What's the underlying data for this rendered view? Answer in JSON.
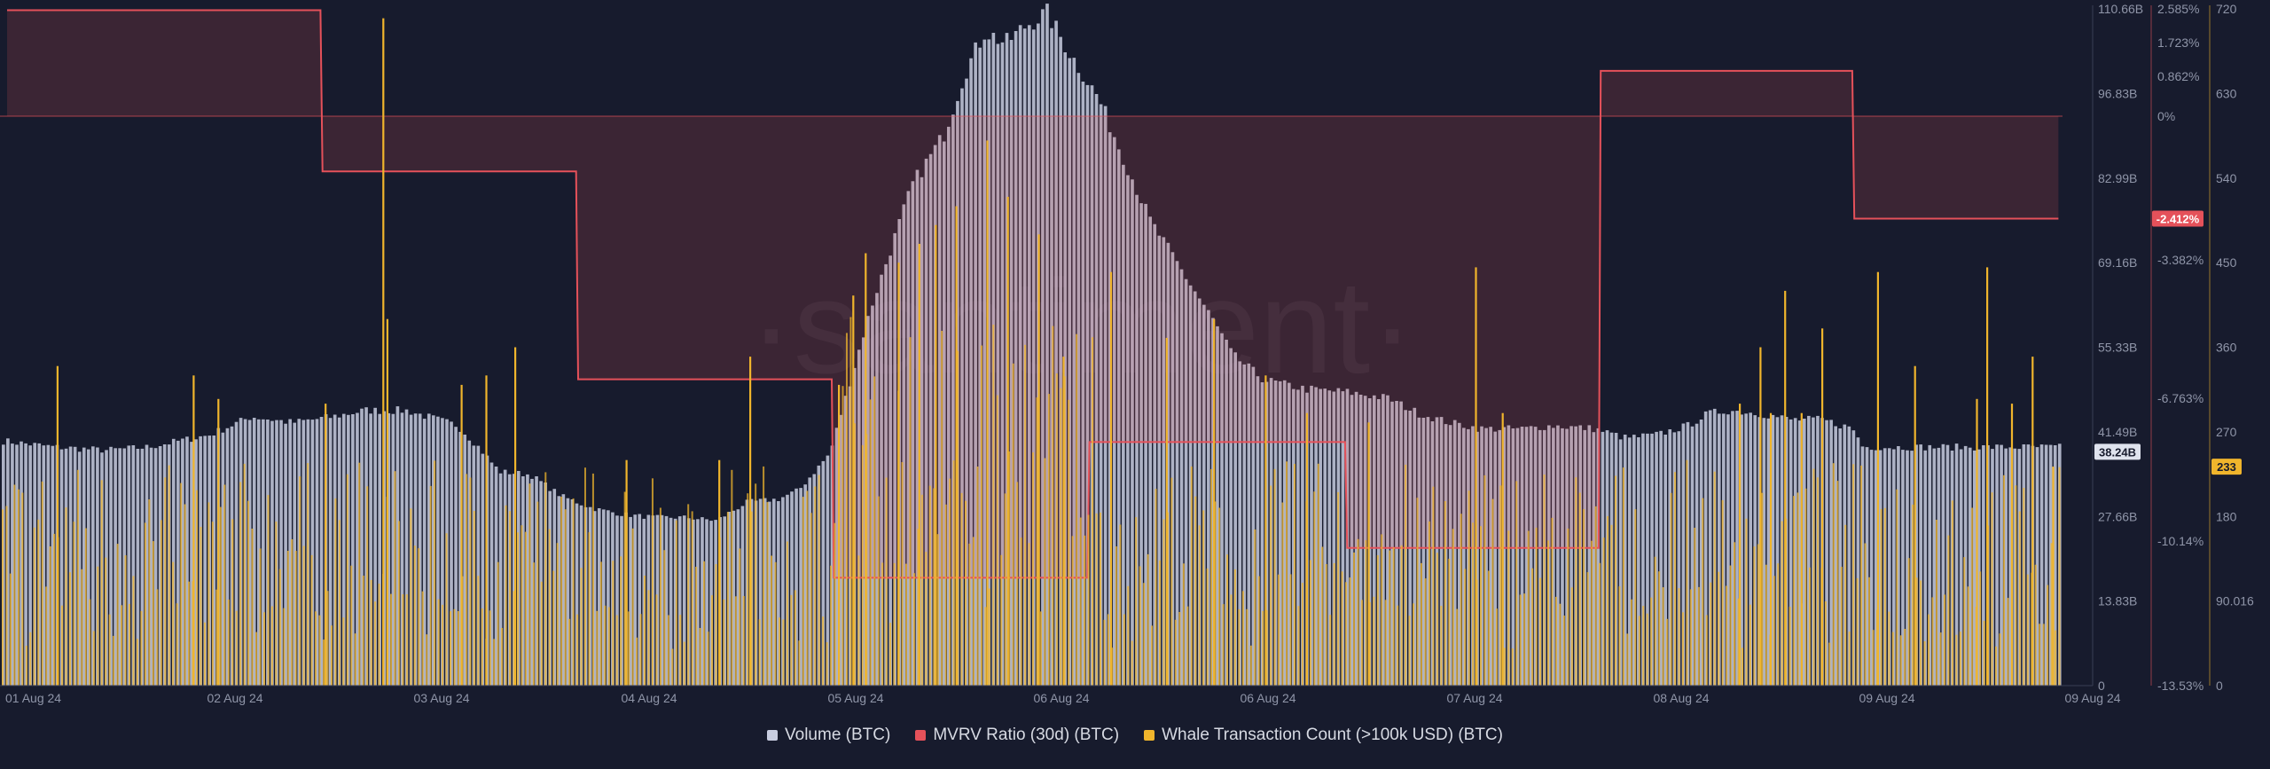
{
  "watermark": "·santiment·",
  "colors": {
    "background": "#171b2d",
    "volume": "#c8cde0",
    "mvrv": "#e5515a",
    "whale": "#f0b52c",
    "axis_text": "#8f95a8"
  },
  "chart_data": {
    "type": "bar",
    "x_range": [
      "2024-08-01",
      "2024-08-09"
    ],
    "x_ticks": [
      "01 Aug 24",
      "02 Aug 24",
      "03 Aug 24",
      "04 Aug 24",
      "05 Aug 24",
      "06 Aug 24",
      "06 Aug 24",
      "07 Aug 24",
      "08 Aug 24",
      "09 Aug 24",
      "09 Aug 24"
    ],
    "axes": {
      "volume": {
        "ticks": [
          "110.66B",
          "96.83B",
          "82.99B",
          "69.16B",
          "55.33B",
          "41.49B",
          "27.66B",
          "13.83B",
          "0"
        ],
        "range": [
          0,
          110.66
        ],
        "current_label": "38.24B"
      },
      "mvrv": {
        "ticks": [
          "2.585%",
          "1.723%",
          "0.862%",
          "0%",
          "-3.382%",
          "-6.763%",
          "-10.14%",
          "-13.53%"
        ],
        "current_label": "-2.412%"
      },
      "whale": {
        "ticks": [
          "720",
          "630",
          "540",
          "450",
          "360",
          "270",
          "180",
          "90.016",
          "0"
        ],
        "range": [
          0,
          720
        ],
        "current_label": "233"
      }
    },
    "series": [
      {
        "name": "Volume (BTC)",
        "type": "bar",
        "unit": "B",
        "anchors_day_value": [
          [
            0.0,
            40
          ],
          [
            0.25,
            39
          ],
          [
            0.5,
            38.5
          ],
          [
            0.7,
            39
          ],
          [
            1.0,
            41
          ],
          [
            1.2,
            44
          ],
          [
            1.4,
            43
          ],
          [
            1.6,
            44
          ],
          [
            1.75,
            45
          ],
          [
            1.95,
            45
          ],
          [
            2.05,
            44
          ],
          [
            2.2,
            42.5
          ],
          [
            2.3,
            39
          ],
          [
            2.4,
            35
          ],
          [
            2.55,
            34.5
          ],
          [
            2.7,
            31
          ],
          [
            2.85,
            29
          ],
          [
            3.0,
            28
          ],
          [
            3.15,
            27.5
          ],
          [
            3.3,
            27.5
          ],
          [
            3.45,
            27
          ],
          [
            3.6,
            30
          ],
          [
            3.75,
            30.5
          ],
          [
            3.85,
            32
          ],
          [
            4.0,
            38
          ],
          [
            4.1,
            50
          ],
          [
            4.2,
            62
          ],
          [
            4.3,
            72
          ],
          [
            4.4,
            82
          ],
          [
            4.55,
            90
          ],
          [
            4.65,
            100
          ],
          [
            4.75,
            107
          ],
          [
            4.85,
            105
          ],
          [
            4.95,
            108
          ],
          [
            5.05,
            110
          ],
          [
            5.15,
            104
          ],
          [
            5.3,
            96
          ],
          [
            5.45,
            84
          ],
          [
            5.55,
            76
          ],
          [
            5.7,
            68
          ],
          [
            5.85,
            60
          ],
          [
            5.95,
            54
          ],
          [
            6.1,
            50
          ],
          [
            6.3,
            48.5
          ],
          [
            6.5,
            48
          ],
          [
            6.7,
            47
          ],
          [
            6.85,
            44.5
          ],
          [
            7.0,
            43
          ],
          [
            7.15,
            42
          ],
          [
            7.35,
            42
          ],
          [
            7.5,
            42.5
          ],
          [
            7.7,
            42
          ],
          [
            7.85,
            40.5
          ],
          [
            8.0,
            41
          ],
          [
            8.15,
            42.5
          ],
          [
            8.25,
            44.5
          ],
          [
            8.35,
            45
          ],
          [
            8.5,
            44.5
          ],
          [
            8.65,
            43.5
          ],
          [
            8.8,
            43.5
          ],
          [
            8.95,
            42
          ],
          [
            9.0,
            39
          ]
        ]
      },
      {
        "name": "MVRV Ratio (30d) (BTC)",
        "type": "step",
        "unit": "%",
        "steps_day_value": [
          [
            0.0,
            2.55
          ],
          [
            1.52,
            2.55
          ],
          [
            1.53,
            -1.3
          ],
          [
            2.76,
            -1.3
          ],
          [
            2.77,
            -6.3
          ],
          [
            4.0,
            -6.3
          ],
          [
            4.01,
            -11.0
          ],
          [
            5.24,
            -11.0
          ],
          [
            5.25,
            -7.8
          ],
          [
            6.49,
            -7.8
          ],
          [
            6.5,
            -10.3
          ],
          [
            7.72,
            -10.3
          ],
          [
            7.73,
            1.0
          ],
          [
            8.95,
            1.0
          ],
          [
            8.96,
            -2.412
          ],
          [
            9.95,
            -2.412
          ]
        ]
      },
      {
        "name": "Whale Transaction Count (>100k USD) (BTC)",
        "type": "bar",
        "unit": "count",
        "spikes_day_value": [
          [
            0.24,
            340
          ],
          [
            0.9,
            330
          ],
          [
            1.02,
            305
          ],
          [
            1.54,
            300
          ],
          [
            1.82,
            710
          ],
          [
            1.84,
            390
          ],
          [
            2.2,
            320
          ],
          [
            2.32,
            330
          ],
          [
            2.46,
            360
          ],
          [
            3.0,
            240
          ],
          [
            3.45,
            240
          ],
          [
            3.6,
            350
          ],
          [
            4.03,
            320
          ],
          [
            4.1,
            415
          ],
          [
            4.16,
            460
          ],
          [
            4.32,
            450
          ],
          [
            4.42,
            470
          ],
          [
            4.5,
            490
          ],
          [
            4.6,
            510
          ],
          [
            4.75,
            580
          ],
          [
            4.85,
            520
          ],
          [
            5.0,
            480
          ],
          [
            5.12,
            350
          ],
          [
            5.35,
            440
          ],
          [
            5.62,
            370
          ],
          [
            5.85,
            390
          ],
          [
            6.1,
            330
          ],
          [
            6.3,
            290
          ],
          [
            6.6,
            280
          ],
          [
            7.12,
            445
          ],
          [
            7.25,
            290
          ],
          [
            8.4,
            300
          ],
          [
            8.5,
            360
          ],
          [
            8.55,
            290
          ],
          [
            8.62,
            420
          ],
          [
            8.7,
            290
          ],
          [
            8.8,
            380
          ],
          [
            9.07,
            440
          ],
          [
            9.25,
            340
          ],
          [
            9.6,
            445
          ],
          [
            9.55,
            305
          ],
          [
            9.72,
            300
          ],
          [
            9.82,
            350
          ],
          [
            9.92,
            233
          ]
        ],
        "base_range": [
          70,
          240
        ]
      }
    ],
    "legend_position": "bottom-center",
    "grid": false
  },
  "legend": [
    {
      "label": "Volume (BTC)",
      "color": "#c8cde0"
    },
    {
      "label": "MVRV Ratio (30d) (BTC)",
      "color": "#e5515a"
    },
    {
      "label": "Whale Transaction Count (>100k USD) (BTC)",
      "color": "#f0b52c"
    }
  ]
}
